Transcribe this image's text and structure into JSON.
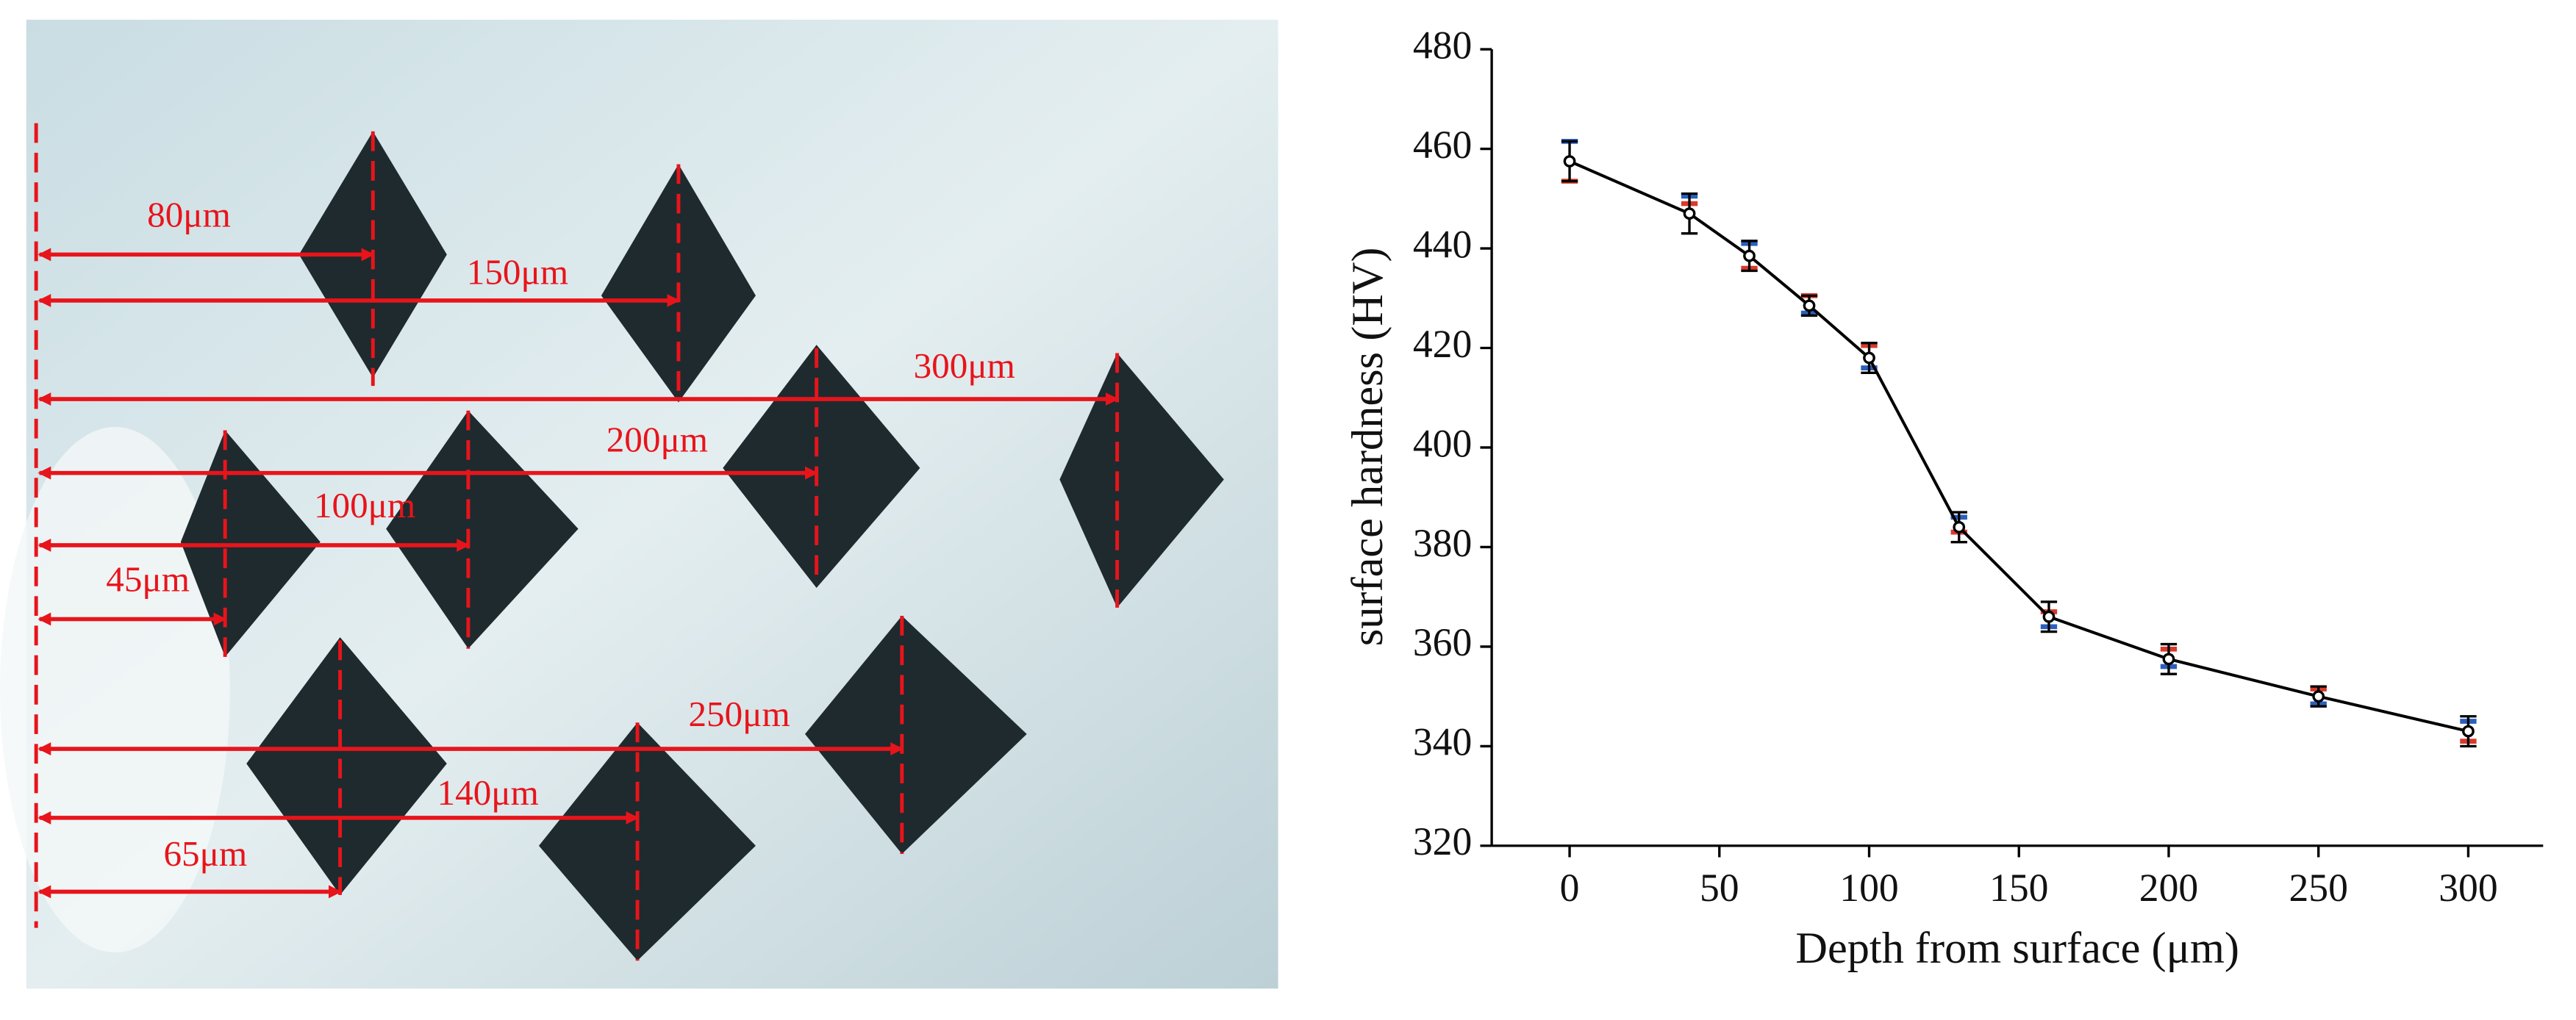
{
  "micrograph": {
    "labels": [
      "80μm",
      "150μm",
      "300μm",
      "200μm",
      "100μm",
      "45μm",
      "250μm",
      "140μm",
      "65μm"
    ]
  },
  "chart_data": {
    "type": "line",
    "x_label": "Depth from surface (μm)",
    "y_label": "surface hardness (HV)",
    "x": [
      0,
      40,
      60,
      80,
      100,
      130,
      160,
      200,
      250,
      300
    ],
    "series": [
      {
        "color": "#000000",
        "values": [
          457.5,
          447,
          438.5,
          428.5,
          418,
          384,
          366,
          357.5,
          350,
          343
        ],
        "errors": [
          4,
          4,
          3,
          2,
          3,
          3,
          3,
          3,
          2,
          3
        ]
      },
      {
        "color": "#d83a2c",
        "values": [
          453.5,
          449,
          436,
          430.5,
          420.5,
          383,
          367,
          359.5,
          351.5,
          341
        ]
      },
      {
        "color": "#2a5fbd",
        "values": [
          461.5,
          450.5,
          441,
          427,
          416,
          386,
          364,
          356,
          348.5,
          345
        ]
      }
    ],
    "xlim": [
      -26,
      325
    ],
    "xticks": [
      0,
      50,
      100,
      150,
      200,
      250,
      300
    ],
    "ylim": [
      320,
      480
    ],
    "yticks": [
      320,
      340,
      360,
      380,
      400,
      420,
      440,
      460,
      480
    ],
    "grid": false
  }
}
